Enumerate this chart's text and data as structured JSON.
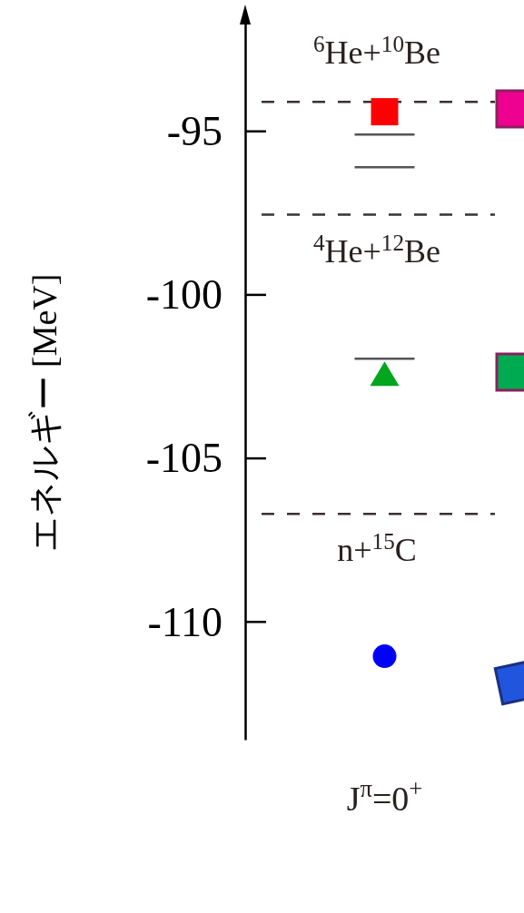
{
  "chart_data": {
    "type": "scatter",
    "ylabel": "エネルギー [MeV]",
    "categories": [
      "J$^{π}$=0$^{+}$"
    ],
    "ylim": [
      -113.6,
      -91.4
    ],
    "yticks": [
      -110,
      -105,
      -100,
      -95
    ],
    "grid": false,
    "series": [
      {
        "marker": "square",
        "color": "#ff0000",
        "values": [
          -94.4
        ]
      },
      {
        "marker": "triangle",
        "color": "#00a61c",
        "values": [
          -102.45
        ]
      },
      {
        "marker": "circle",
        "color": "#0000ff",
        "values": [
          -111.05
        ]
      }
    ],
    "ref_lines": [
      {
        "axis": "y",
        "value": -94.1,
        "label": "$^{6}$He+$^{10}$Be",
        "line_style": "dashed"
      },
      {
        "axis": "y",
        "value": -97.55,
        "label": "$^{4}$He+$^{12}$Be",
        "line_style": "dashed"
      },
      {
        "axis": "y",
        "value": -106.7,
        "label": "n+$^{15}$C",
        "line_style": "dashed"
      },
      {
        "axis": "y",
        "value": -95.1,
        "line_style": "solid",
        "color": "#555555"
      },
      {
        "axis": "y",
        "value": -96.1,
        "line_style": "solid",
        "color": "#555555"
      },
      {
        "axis": "y",
        "value": -101.95,
        "line_style": "solid",
        "color": "#555555"
      }
    ]
  }
}
